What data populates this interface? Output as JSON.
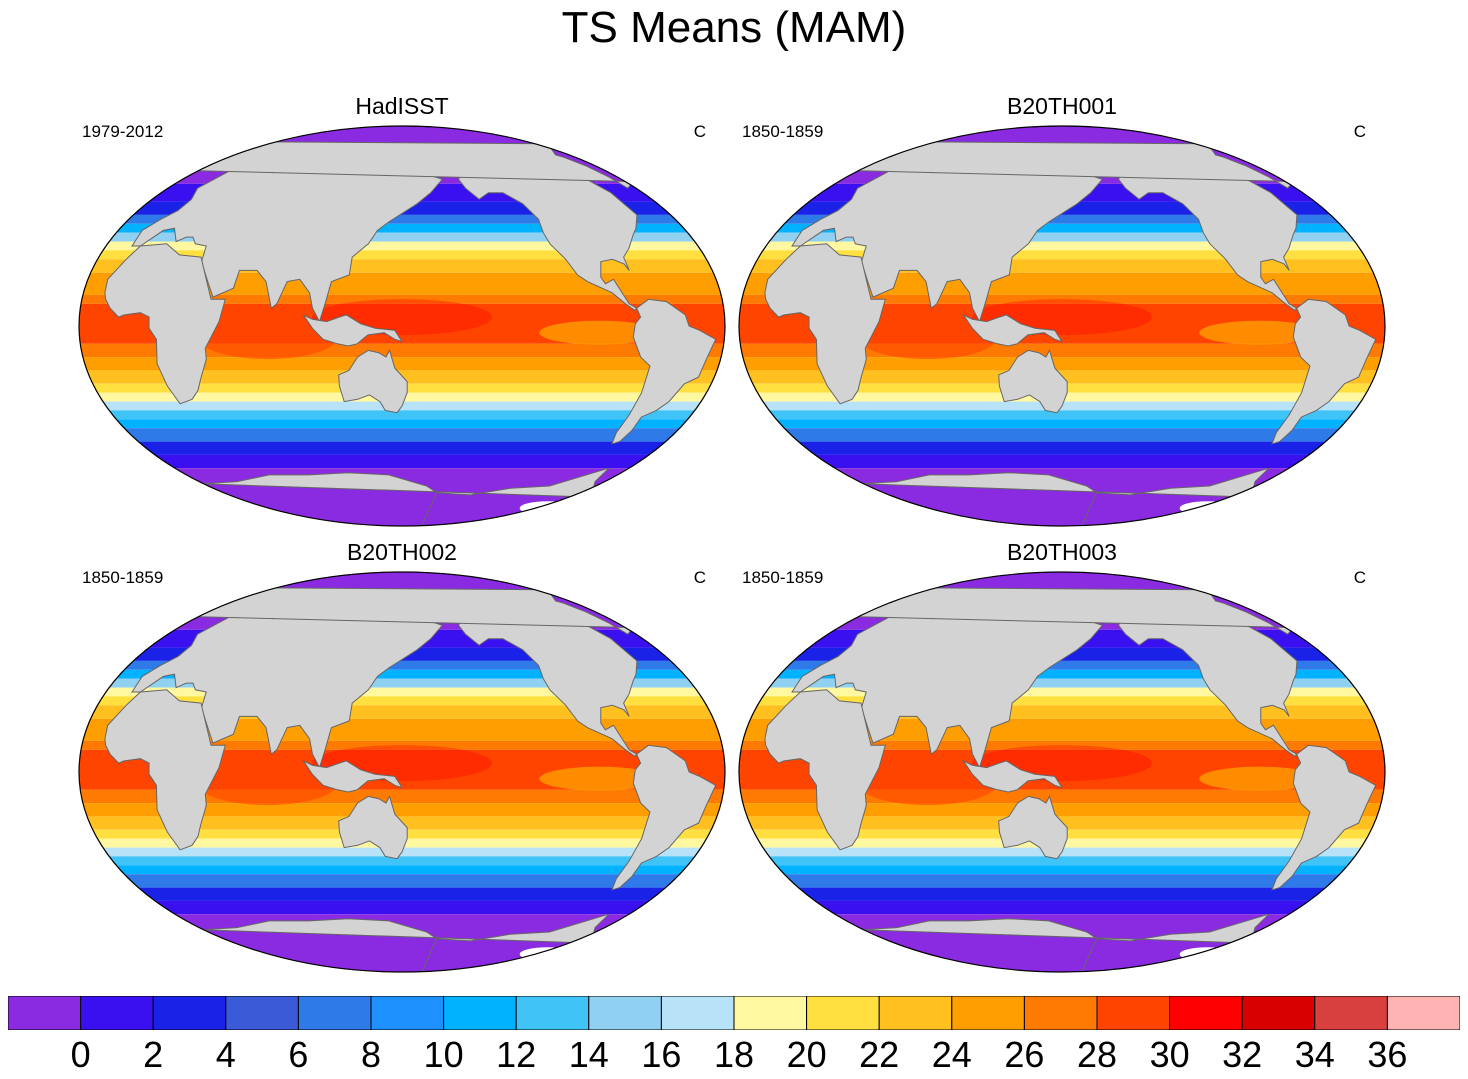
{
  "title": "TS Means (MAM)",
  "panels": [
    {
      "title": "HadISST",
      "period": "1979-2012",
      "units": "C"
    },
    {
      "title": "B20TH001",
      "period": "1850-1859",
      "units": "C"
    },
    {
      "title": "B20TH002",
      "period": "1850-1859",
      "units": "C"
    },
    {
      "title": "B20TH003",
      "period": "1850-1859",
      "units": "C"
    }
  ],
  "colors": {
    "land": "#d3d3d3",
    "coast": "#666666",
    "sea_ice": "#ffffff"
  },
  "colorbar": {
    "tick_labels": [
      "0",
      "2",
      "4",
      "6",
      "8",
      "10",
      "12",
      "14",
      "16",
      "18",
      "20",
      "22",
      "24",
      "26",
      "28",
      "30",
      "32",
      "34",
      "36"
    ],
    "levels": [
      0,
      2,
      4,
      6,
      8,
      10,
      12,
      14,
      16,
      18,
      20,
      22,
      24,
      26,
      28,
      30,
      32,
      34,
      36
    ],
    "colors": [
      "#8a2be2",
      "#3a10f0",
      "#1a22e8",
      "#3a5ad8",
      "#2e7ae8",
      "#1e90ff",
      "#00b2ff",
      "#40c4f8",
      "#90d0f0",
      "#b8e2f8",
      "#fff8a0",
      "#ffe040",
      "#ffc020",
      "#ff9e00",
      "#ff7a00",
      "#ff4400",
      "#ff0000",
      "#d80000",
      "#d84040",
      "#ffb4b4"
    ]
  }
}
